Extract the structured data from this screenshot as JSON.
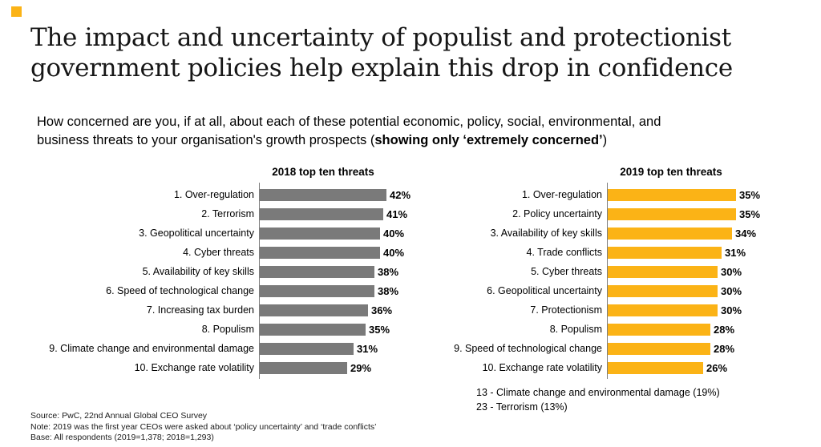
{
  "slide": {
    "accent_color": "#FBB316",
    "title_line1": "The impact and uncertainty of populist and protectionist",
    "title_line2": "government policies help explain this drop in confidence",
    "subtitle": {
      "line1": "How concerned are you, if at all, about each of these potential economic, policy, social, environmental, and",
      "line2_prefix": "business threats to your organisation's growth prospects (",
      "line2_bold": "showing only ‘extremely concerned’",
      "line2_suffix": ")"
    }
  },
  "chart_data": [
    {
      "type": "bar",
      "orientation": "horizontal",
      "title": "2018 top ten threats",
      "bar_color": "#7A7A7A",
      "value_suffix": "%",
      "xlim": [
        0,
        45
      ],
      "grid": false,
      "legend": "none",
      "categories": [
        "1. Over-regulation",
        "2. Terrorism",
        "3. Geopolitical uncertainty",
        "4. Cyber threats",
        "5. Availability of key skills",
        "6. Speed of technological change",
        "7. Increasing tax burden",
        "8. Populism",
        "9. Climate change and environmental damage",
        "10. Exchange rate volatility"
      ],
      "values": [
        42,
        41,
        40,
        40,
        38,
        38,
        36,
        35,
        31,
        29
      ],
      "notes": []
    },
    {
      "type": "bar",
      "orientation": "horizontal",
      "title": "2019 top ten threats",
      "bar_color": "#FBB316",
      "value_suffix": "%",
      "xlim": [
        0,
        38
      ],
      "grid": false,
      "legend": "none",
      "categories": [
        "1. Over-regulation",
        "2. Policy uncertainty",
        "3. Availability of key skills",
        "4. Trade conflicts",
        "5. Cyber threats",
        "6. Geopolitical uncertainty",
        "7. Protectionism",
        "8. Populism",
        "9. Speed of technological change",
        "10. Exchange rate volatility"
      ],
      "values": [
        35,
        35,
        34,
        31,
        30,
        30,
        30,
        28,
        28,
        26
      ],
      "notes": [
        "13 - Climate change and environmental damage (19%)",
        "23 - Terrorism (13%)"
      ]
    }
  ],
  "footer": {
    "source": "Source: PwC, 22nd Annual Global CEO Survey",
    "note": "Note: 2019 was the first year CEOs were asked about ‘policy uncertainty’ and ‘trade conflicts’",
    "base": "Base: All respondents (2019=1,378; 2018=1,293)"
  }
}
